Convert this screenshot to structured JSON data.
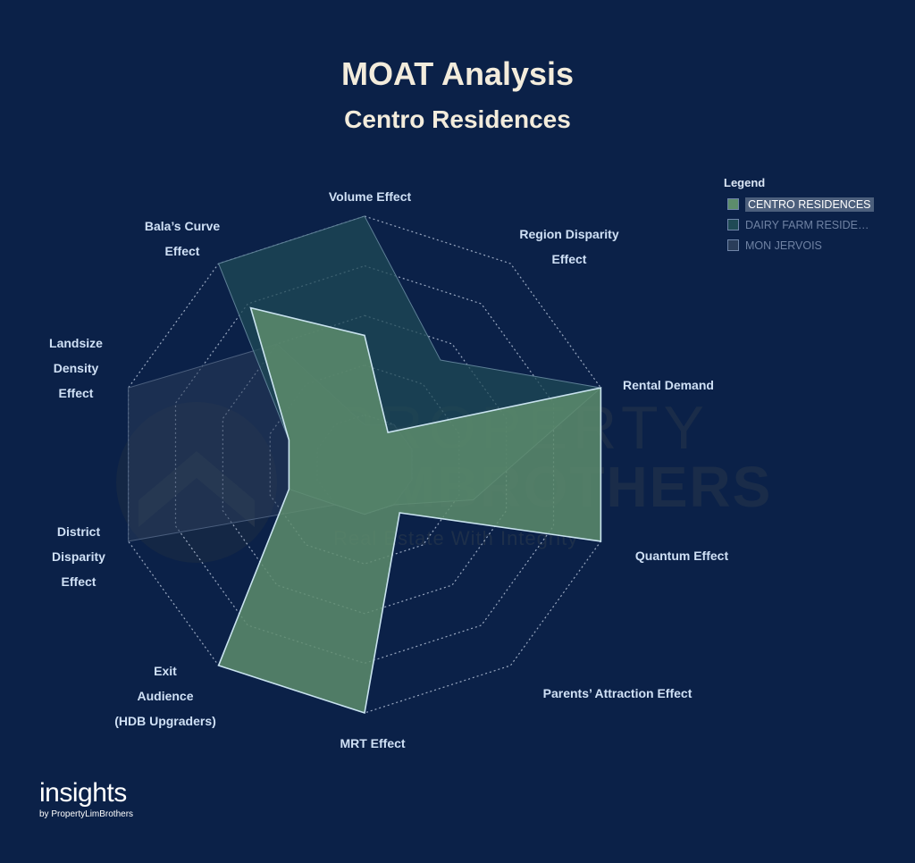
{
  "header": {
    "title": "MOAT Analysis",
    "subtitle": "Centro Residences"
  },
  "chart_data": {
    "type": "radar",
    "title": "MOAT Analysis",
    "subtitle": "Centro Residences",
    "axes": [
      "Volume Effect",
      "Region Disparity Effect",
      "Rental Demand",
      "Quantum Effect",
      "Parents' Attraction Effect",
      "MRT Effect",
      "Exit Audience (HDB Upgraders)",
      "District Disparity Effect",
      "Landsize Density Effect",
      "Bala's Curve Effect"
    ],
    "axis_labels": [
      [
        "Volume Effect"
      ],
      [
        "Region Disparity",
        "Effect"
      ],
      [
        "Rental Demand"
      ],
      [
        "Quantum Effect"
      ],
      [
        "Parents’ Attraction Effect"
      ],
      [
        "MRT Effect"
      ],
      [
        "Exit",
        "Audience",
        "(HDB Upgraders)"
      ],
      [
        "District",
        "Disparity",
        "Effect"
      ],
      [
        "Landsize",
        "Density",
        "Effect"
      ],
      [
        "Bala’s Curve",
        "Effect"
      ]
    ],
    "levels": 5,
    "range": [
      0,
      5
    ],
    "series": [
      {
        "name": "CENTRO RESIDENCES",
        "values": [
          2.6,
          0.8,
          5,
          5,
          1.2,
          5,
          5,
          1.6,
          1.6,
          3.9
        ],
        "color": "#5d8c6c"
      },
      {
        "name": "DAIRY FARM RESIDE…",
        "values": [
          5,
          2.6,
          5,
          2.3,
          1.0,
          1.0,
          1.0,
          1.6,
          1.6,
          5
        ],
        "color": "#1f4a55"
      },
      {
        "name": "MON JERVOIS",
        "values": [
          0.8,
          1.0,
          1.0,
          1.0,
          1.0,
          1.0,
          1.0,
          5,
          5,
          3.0
        ],
        "color": "#2a3d5a"
      }
    ],
    "legend": {
      "title": "Legend",
      "position": "top-right",
      "selected": "CENTRO RESIDENCES"
    }
  },
  "watermark": {
    "line1": "PROPERTY",
    "line2": "LIMBROTHERS",
    "line3": "Real Estate With Integrity"
  },
  "brand": {
    "name": "insights",
    "by": "by PropertyLimBrothers"
  }
}
